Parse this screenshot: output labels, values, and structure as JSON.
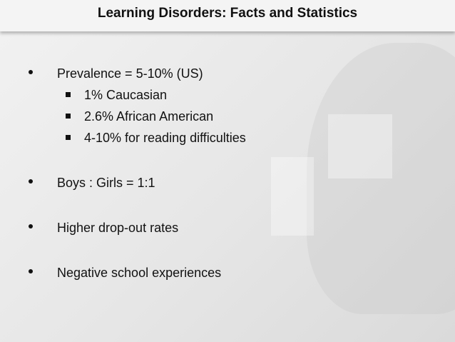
{
  "title": "Learning Disorders: Facts and Statistics",
  "bullets": [
    {
      "text": "Prevalence = 5-10% (US)",
      "sub": [
        "1% Caucasian",
        "2.6% African American",
        "4-10% for reading difficulties"
      ]
    },
    {
      "text": "Boys : Girls = 1:1"
    },
    {
      "text": "Higher drop-out rates"
    },
    {
      "text": "Negative school experiences"
    }
  ]
}
